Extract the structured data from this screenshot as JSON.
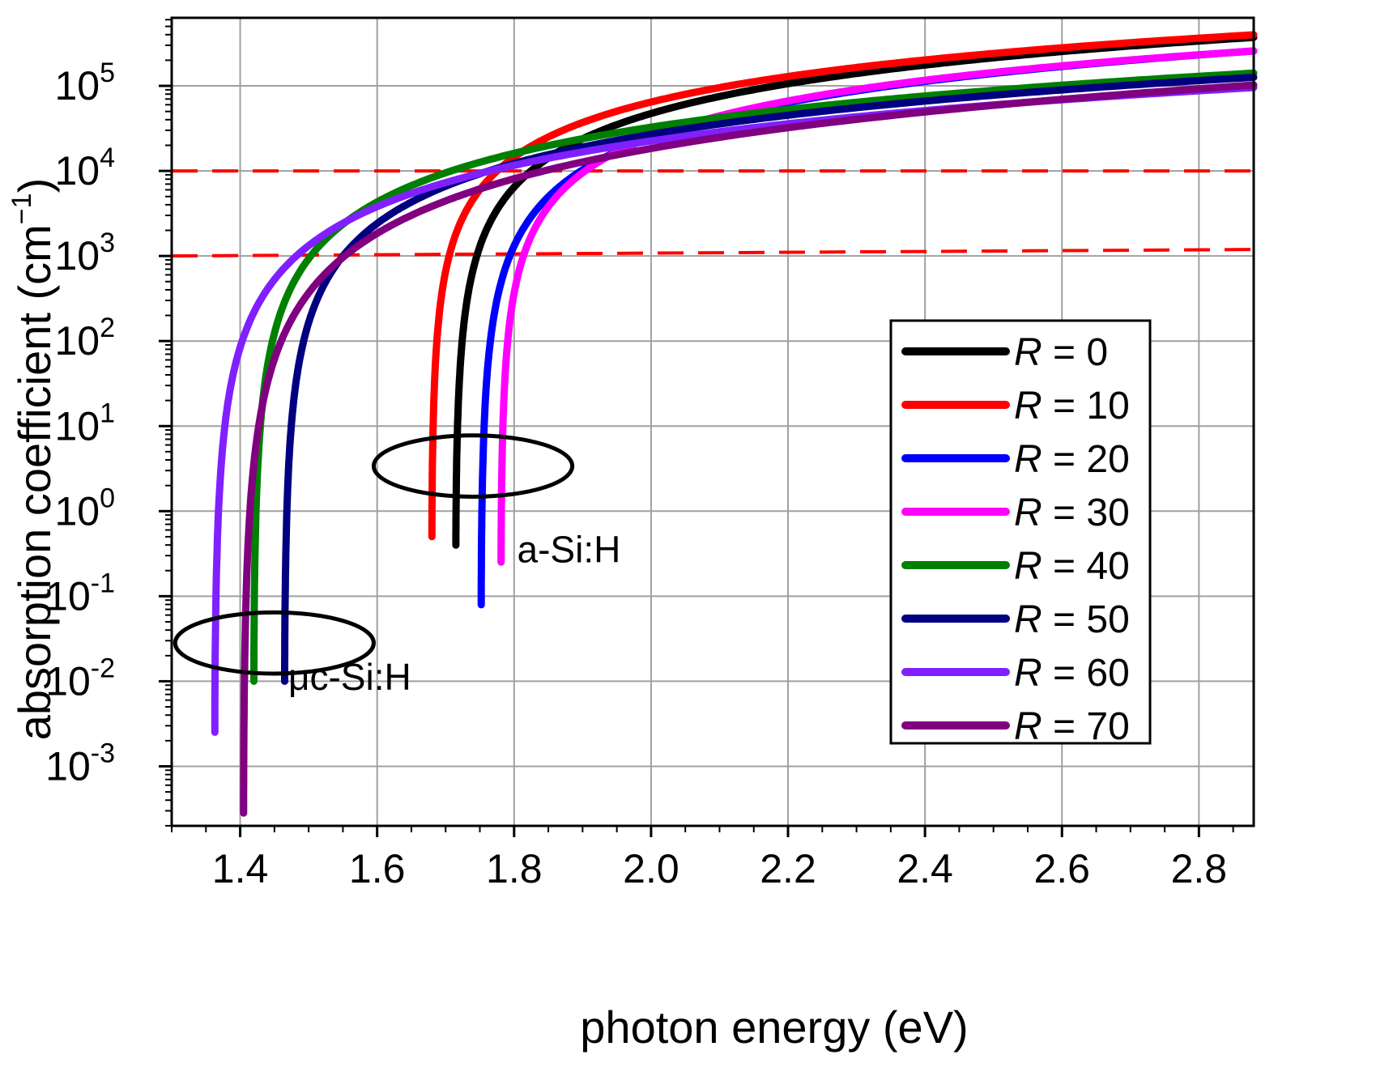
{
  "chart_data": {
    "type": "line",
    "xlabel": "photon energy (eV)",
    "ylabel": "absorption coefficient (cm",
    "ylabel_exponent": "−1",
    "ylabel_close": ")",
    "yscale": "log",
    "xlim": [
      1.3,
      2.88
    ],
    "ylim_log10": [
      -3.7,
      5.8
    ],
    "grid": true,
    "x_ticks": [
      "1.4",
      "1.6",
      "1.8",
      "2.0",
      "2.2",
      "2.4",
      "2.6",
      "2.8"
    ],
    "x_tick_values": [
      1.4,
      1.6,
      1.8,
      2.0,
      2.2,
      2.4,
      2.6,
      2.8
    ],
    "y_tick_exponents": [
      "-3",
      "-2",
      "-1",
      "0",
      "1",
      "2",
      "3",
      "4",
      "5"
    ],
    "y_tick_base": "10",
    "reference_lines": [
      {
        "y_log10": 4,
        "style": "dashed",
        "color": "#ff0000"
      },
      {
        "y_log10": 3,
        "style": "dashed",
        "color": "#ff0000"
      }
    ],
    "annotations": [
      {
        "text": "a-Si:H",
        "x": 1.88,
        "y_log10": -0.45
      },
      {
        "text": "μc-Si:H",
        "x": 1.56,
        "y_log10": -1.95
      }
    ],
    "ellipses": [
      {
        "cx": 1.74,
        "cy_log10": 0.53,
        "rx": 0.145,
        "ry_log10": 0.36
      },
      {
        "cx": 1.45,
        "cy_log10": -1.55,
        "rx": 0.145,
        "ry_log10": 0.36
      }
    ],
    "legend": {
      "position": "right",
      "prefix": "R"
    },
    "series": [
      {
        "name": "R =   0",
        "label_value": "  0",
        "color": "#000000",
        "E_start": 1.715,
        "Eg": 1.71,
        "log_start": -0.4,
        "log_end": 5.57,
        "bulk_start": 1.0
      },
      {
        "name": "R = 10",
        "label_value": "10",
        "color": "#ff0000",
        "E_start": 1.68,
        "Eg": 1.676,
        "log_start": -0.3,
        "log_end": 5.6,
        "bulk_start": 1.0
      },
      {
        "name": "R = 20",
        "label_value": "20",
        "color": "#0000ff",
        "E_start": 1.752,
        "Eg": 1.748,
        "log_start": -1.1,
        "log_end": 5.41,
        "bulk_start": 1.0
      },
      {
        "name": "R = 30",
        "label_value": "30",
        "color": "#ff00ff",
        "E_start": 1.781,
        "Eg": 1.777,
        "log_start": -0.6,
        "log_end": 5.41,
        "bulk_start": 1.0
      },
      {
        "name": "R = 40",
        "label_value": "40",
        "color": "#008000",
        "E_start": 1.42,
        "Eg": 1.416,
        "log_start": -2.0,
        "log_end": 5.15,
        "bulk_start": 0.5
      },
      {
        "name": "R = 50",
        "label_value": "50",
        "color": "#000080",
        "E_start": 1.465,
        "Eg": 1.461,
        "log_start": -2.0,
        "log_end": 5.1,
        "bulk_start": 1.0
      },
      {
        "name": "R = 60",
        "label_value": "60",
        "color": "#8020ff",
        "E_start": 1.363,
        "Eg": 1.359,
        "log_start": -2.6,
        "log_end": 4.98,
        "bulk_start": 0.5
      },
      {
        "name": "R = 70",
        "label_value": "70",
        "color": "#800080",
        "E_start": 1.405,
        "Eg": 1.401,
        "log_start": -3.55,
        "log_end": 5.01,
        "bulk_start": 0.2
      }
    ]
  }
}
